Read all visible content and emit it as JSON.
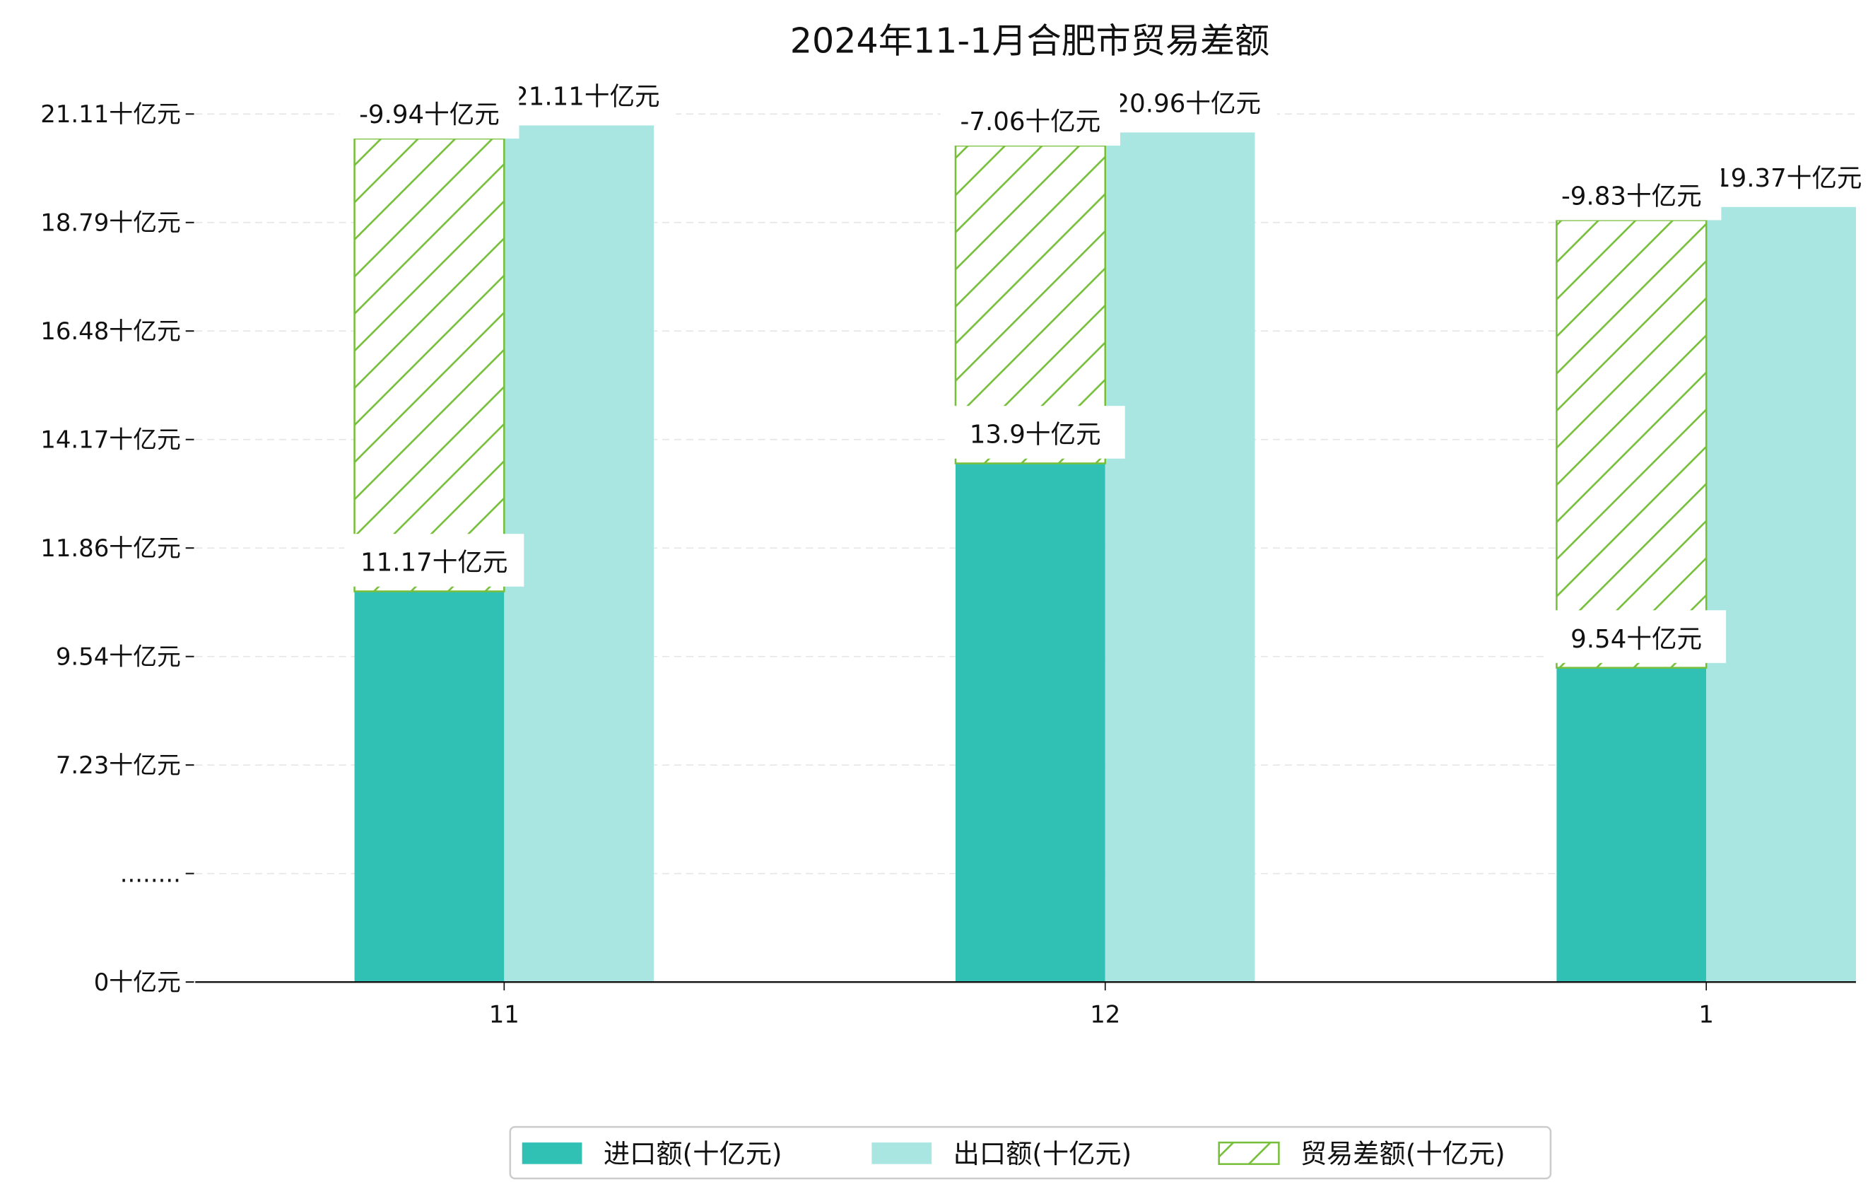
{
  "chart_data": {
    "type": "bar",
    "title": "2024年11-1月合肥市贸易差额",
    "xlabel": "",
    "ylabel": "",
    "categories": [
      "11",
      "12",
      "1"
    ],
    "series": [
      {
        "name": "进口额(十亿元)",
        "values": [
          11.17,
          13.9,
          9.54
        ],
        "labels": [
          "11.17十亿元",
          "13.9十亿元",
          "9.54十亿元"
        ],
        "color": "#31c0b4"
      },
      {
        "name": "出口额(十亿元)",
        "values": [
          21.11,
          20.96,
          19.37
        ],
        "labels": [
          "21.11十亿元",
          "20.96十亿元",
          "19.37十亿元"
        ],
        "color": "#a9e6e1"
      },
      {
        "name": "贸易差额(十亿元)",
        "values": [
          -9.94,
          -7.06,
          -9.83
        ],
        "labels": [
          "-9.94十亿元",
          "-7.06十亿元",
          "-9.83十亿元"
        ],
        "color": "#77bf3b",
        "hatched": true
      }
    ],
    "yticks": [
      {
        "value": 0,
        "label": "0十亿元"
      },
      {
        "value": 4.92,
        "label": "........"
      },
      {
        "value": 7.23,
        "label": "7.23十亿元"
      },
      {
        "value": 9.54,
        "label": "9.54十亿元"
      },
      {
        "value": 11.86,
        "label": "11.86十亿元"
      },
      {
        "value": 14.17,
        "label": "14.17十亿元"
      },
      {
        "value": 16.48,
        "label": "16.48十亿元"
      },
      {
        "value": 18.79,
        "label": "18.79十亿元"
      },
      {
        "value": 21.11,
        "label": "21.11十亿元"
      }
    ],
    "ylim": [
      0,
      21.11
    ],
    "grid": true,
    "legend": "bottom-center"
  }
}
